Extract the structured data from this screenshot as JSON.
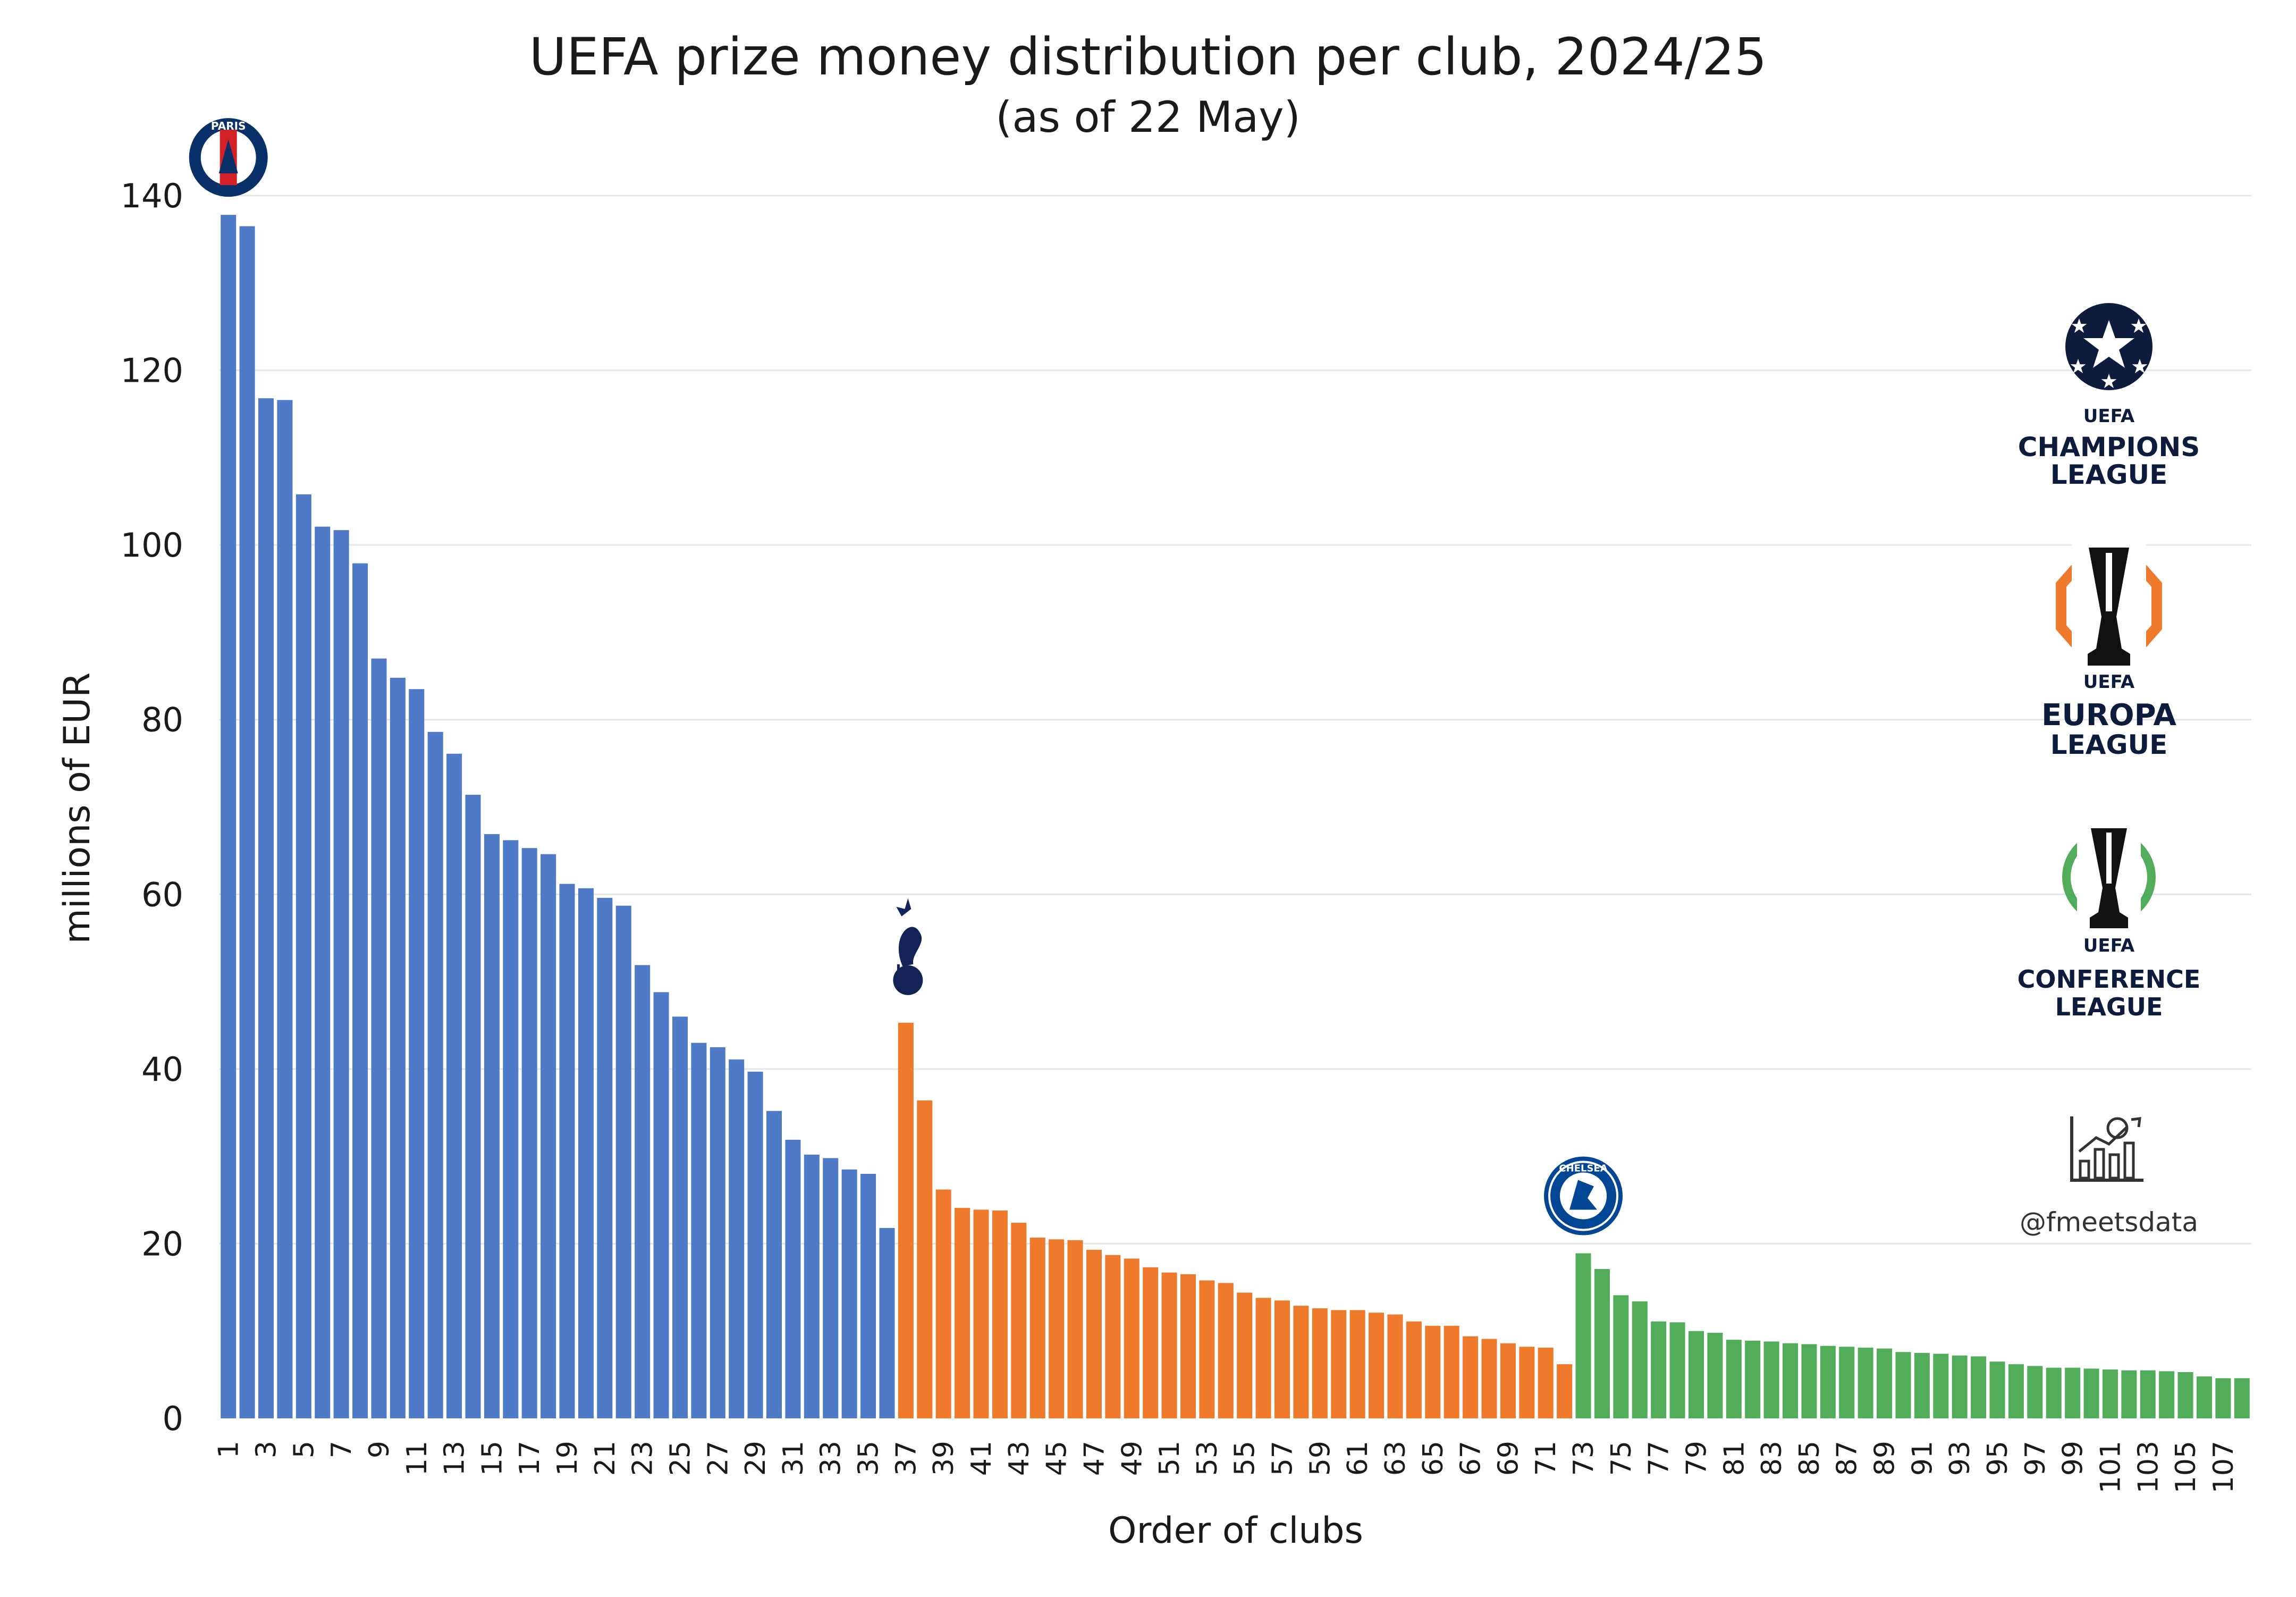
{
  "chart_data": {
    "type": "bar",
    "title": "UEFA prize money distribution per club, 2024/25",
    "subtitle": "(as of 22 May)",
    "xlabel": "Order of clubs",
    "ylabel": "millions of EUR",
    "ylim": [
      0,
      140
    ],
    "yticks": [
      0,
      20,
      40,
      60,
      80,
      100,
      120,
      140
    ],
    "grid": true,
    "legend": "right",
    "x_tick_labels": [
      "1",
      "3",
      "5",
      "7",
      "9",
      "11",
      "13",
      "15",
      "17",
      "19",
      "21",
      "23",
      "25",
      "27",
      "29",
      "31",
      "33",
      "35",
      "37",
      "39",
      "41",
      "43",
      "45",
      "47",
      "49",
      "51",
      "53",
      "55",
      "57",
      "59",
      "61",
      "63",
      "65",
      "67",
      "69",
      "71",
      "73",
      "75",
      "77",
      "79",
      "81",
      "83",
      "85",
      "87",
      "89",
      "91",
      "93",
      "95",
      "97",
      "99",
      "101",
      "103",
      "105",
      "107"
    ],
    "series": [
      {
        "name": "UEFA Champions League",
        "color": "#4f7ac7",
        "start": 1,
        "values": [
          137.8,
          136.5,
          116.8,
          116.6,
          105.8,
          102.1,
          101.7,
          97.9,
          87.0,
          84.8,
          83.5,
          78.6,
          76.1,
          71.4,
          66.9,
          66.2,
          65.3,
          64.6,
          61.2,
          60.7,
          59.6,
          58.7,
          51.9,
          48.8,
          46.0,
          43.0,
          42.5,
          41.1,
          39.7,
          35.2,
          31.9,
          30.2,
          29.8,
          28.5,
          28.0,
          21.8
        ]
      },
      {
        "name": "UEFA Europa League",
        "color": "#f07a2c",
        "start": 37,
        "values": [
          45.3,
          36.4,
          26.2,
          24.1,
          23.9,
          23.8,
          22.4,
          20.7,
          20.5,
          20.4,
          19.3,
          18.7,
          18.3,
          17.3,
          16.7,
          16.5,
          15.8,
          15.5,
          14.4,
          13.8,
          13.5,
          12.9,
          12.6,
          12.4,
          12.4,
          12.1,
          11.9,
          11.1,
          10.6,
          10.6,
          9.4,
          9.1,
          8.6,
          8.2,
          8.1,
          6.2
        ]
      },
      {
        "name": "UEFA Conference League",
        "color": "#52ad5a",
        "start": 73,
        "values": [
          18.9,
          17.1,
          14.1,
          13.4,
          11.1,
          11.0,
          10.0,
          9.8,
          9.0,
          8.9,
          8.8,
          8.6,
          8.5,
          8.3,
          8.2,
          8.1,
          8.0,
          7.6,
          7.5,
          7.4,
          7.2,
          7.1,
          6.5,
          6.2,
          6.0,
          5.8,
          5.8,
          5.7,
          5.6,
          5.5,
          5.5,
          5.4,
          5.3,
          4.8,
          4.6,
          4.6
        ]
      }
    ],
    "legend_entries": [
      {
        "name": "champions-league",
        "line1": "CHAMPIONS",
        "line2": "LEAGUE",
        "accent": "#0d1b3d"
      },
      {
        "name": "europa-league",
        "line1": "EUROPA",
        "line2": "LEAGUE",
        "accent": "#f07a2c"
      },
      {
        "name": "conference-league",
        "line1": "CONFERENCE",
        "line2": "LEAGUE",
        "accent": "#52ad5a"
      }
    ],
    "uefa_text": "UEFA",
    "club_badges": [
      {
        "name": "psg",
        "club_index": 1,
        "text": "PARIS"
      },
      {
        "name": "tottenham",
        "club_index": 37,
        "text": ""
      },
      {
        "name": "chelsea",
        "club_index": 73,
        "text": "CHELSEA"
      }
    ],
    "watermark": "@fmeetsdata",
    "grid_color": "#e6e6e6"
  }
}
